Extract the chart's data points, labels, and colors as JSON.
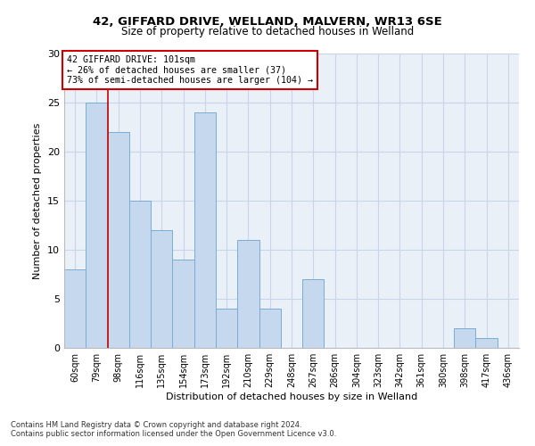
{
  "title1": "42, GIFFARD DRIVE, WELLAND, MALVERN, WR13 6SE",
  "title2": "Size of property relative to detached houses in Welland",
  "xlabel": "Distribution of detached houses by size in Welland",
  "ylabel": "Number of detached properties",
  "categories": [
    "60sqm",
    "79sqm",
    "98sqm",
    "116sqm",
    "135sqm",
    "154sqm",
    "173sqm",
    "192sqm",
    "210sqm",
    "229sqm",
    "248sqm",
    "267sqm",
    "286sqm",
    "304sqm",
    "323sqm",
    "342sqm",
    "361sqm",
    "380sqm",
    "398sqm",
    "417sqm",
    "436sqm"
  ],
  "values": [
    8,
    25,
    22,
    15,
    12,
    9,
    24,
    4,
    11,
    4,
    0,
    7,
    0,
    0,
    0,
    0,
    0,
    0,
    2,
    1,
    0
  ],
  "bar_color": "#c5d8ed",
  "bar_edge_color": "#7aadd4",
  "ylim": [
    0,
    30
  ],
  "yticks": [
    0,
    5,
    10,
    15,
    20,
    25,
    30
  ],
  "red_line_x": 1.5,
  "annotation_line1": "42 GIFFARD DRIVE: 101sqm",
  "annotation_line2": "← 26% of detached houses are smaller (37)",
  "annotation_line3": "73% of semi-detached houses are larger (104) →",
  "annotation_box_color": "#ffffff",
  "annotation_border_color": "#cc0000",
  "footnote1": "Contains HM Land Registry data © Crown copyright and database right 2024.",
  "footnote2": "Contains public sector information licensed under the Open Government Licence v3.0.",
  "grid_color": "#c8d4e8",
  "background_color": "#eaf0f8"
}
